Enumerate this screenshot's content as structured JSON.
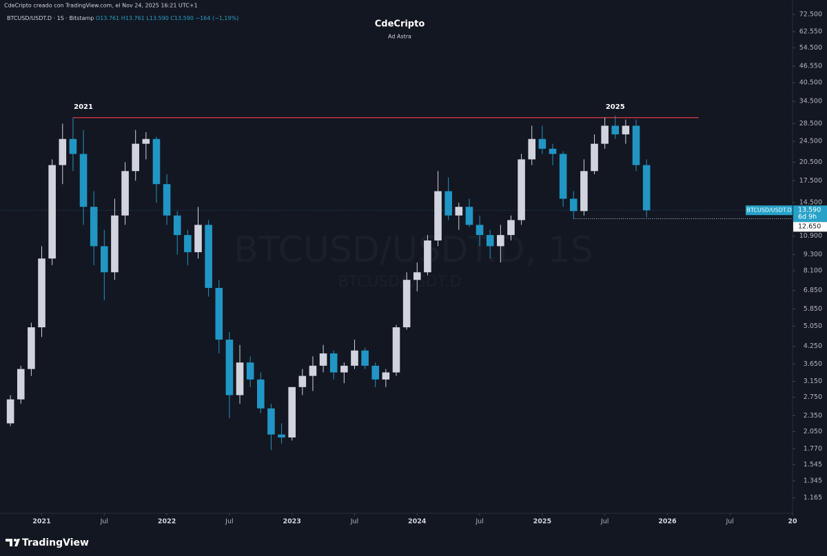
{
  "chart_data": {
    "type": "candlestick",
    "header": "CdeCripto creado con TradingView.com, el Nov 24, 2025 16:21 UTC+1",
    "legend": {
      "symbol": "BTCUSD/USDT.D · 1S · Bitstamp",
      "open": "O13.761",
      "high": "H13.761",
      "low": "L13.590",
      "close": "C13.590",
      "change": "−164 (−1,19%)"
    },
    "title": "CdeCripto",
    "subtitle": "Ad Astra",
    "watermark": "BTCUSD/USDT.D, 1S",
    "watermark_sub": "BTCUSD/USDT.D",
    "footer": "TradingView",
    "log_scale": true,
    "grid": false,
    "up_color": "#d1d4dc",
    "down_color": "#2196c4",
    "xlim": [
      "2020-09",
      "2027-01"
    ],
    "ylim": [
      1.02,
      82
    ],
    "xticks": [
      {
        "value": "2021-01",
        "label": "2021"
      },
      {
        "value": "2021-07",
        "label": "Jul"
      },
      {
        "value": "2022-01",
        "label": "2022"
      },
      {
        "value": "2022-07",
        "label": "Jul"
      },
      {
        "value": "2023-01",
        "label": "2023"
      },
      {
        "value": "2023-07",
        "label": "Jul"
      },
      {
        "value": "2024-01",
        "label": "2024"
      },
      {
        "value": "2024-07",
        "label": "Jul"
      },
      {
        "value": "2025-01",
        "label": "2025"
      },
      {
        "value": "2025-07",
        "label": "Jul"
      },
      {
        "value": "2026-01",
        "label": "2026"
      },
      {
        "value": "2026-07",
        "label": "Jul"
      },
      {
        "value": "2027-01",
        "label": "20"
      }
    ],
    "yticks": [
      {
        "value": 72.5,
        "label": "72.500"
      },
      {
        "value": 62.55,
        "label": "62.550"
      },
      {
        "value": 54.5,
        "label": "54.500"
      },
      {
        "value": 46.55,
        "label": "46.550"
      },
      {
        "value": 40.5,
        "label": "40.500"
      },
      {
        "value": 34.5,
        "label": "34.500"
      },
      {
        "value": 28.5,
        "label": "28.500"
      },
      {
        "value": 24.5,
        "label": "24.500"
      },
      {
        "value": 20.5,
        "label": "20.500"
      },
      {
        "value": 17.5,
        "label": "17.500"
      },
      {
        "value": 14.5,
        "label": "14.500"
      },
      {
        "value": 10.9,
        "label": "10.900"
      },
      {
        "value": 9.3,
        "label": "9.300"
      },
      {
        "value": 8.1,
        "label": "8.100"
      },
      {
        "value": 6.85,
        "label": "6.850"
      },
      {
        "value": 5.85,
        "label": "5.850"
      },
      {
        "value": 5.05,
        "label": "5.050"
      },
      {
        "value": 4.25,
        "label": "4.250"
      },
      {
        "value": 3.65,
        "label": "3.650"
      },
      {
        "value": 3.15,
        "label": "3.150"
      },
      {
        "value": 2.75,
        "label": "2.750"
      },
      {
        "value": 2.35,
        "label": "2.350"
      },
      {
        "value": 2.05,
        "label": "2.050"
      },
      {
        "value": 1.77,
        "label": "1.770"
      },
      {
        "value": 1.545,
        "label": "1.545"
      },
      {
        "value": 1.345,
        "label": "1.345"
      },
      {
        "value": 1.165,
        "label": "1.165"
      }
    ],
    "resistance": {
      "value": 30,
      "from": "2021-04",
      "to": "2026-04",
      "color": "#e53946"
    },
    "low_line": {
      "value": 12.65,
      "label": "12.650",
      "from": "2025-04"
    },
    "price_line": {
      "value": 13.59,
      "label": "13.590",
      "countdown": "6d 9h",
      "symbol": "BTCUSD/USDT.D",
      "color": "#26a2c9"
    },
    "annotations": [
      {
        "text": "2021",
        "x": "2021-05"
      },
      {
        "text": "2025",
        "x": "2025-08"
      }
    ],
    "candles": [
      {
        "x": "2020-10",
        "o": 2.2,
        "h": 2.8,
        "l": 2.15,
        "c": 2.7
      },
      {
        "x": "2020-11",
        "o": 2.7,
        "h": 3.6,
        "l": 2.6,
        "c": 3.5
      },
      {
        "x": "2020-12",
        "o": 3.5,
        "h": 5.2,
        "l": 3.3,
        "c": 5.0
      },
      {
        "x": "2021-01",
        "o": 5.0,
        "h": 10.0,
        "l": 4.6,
        "c": 9.0
      },
      {
        "x": "2021-02",
        "o": 9.0,
        "h": 21.0,
        "l": 8.5,
        "c": 20.0
      },
      {
        "x": "2021-03",
        "o": 20.0,
        "h": 28.5,
        "l": 17.0,
        "c": 25.0
      },
      {
        "x": "2021-04",
        "o": 25.0,
        "h": 30.0,
        "l": 19.0,
        "c": 22.0
      },
      {
        "x": "2021-05",
        "o": 22.0,
        "h": 27.0,
        "l": 12.0,
        "c": 14.0
      },
      {
        "x": "2021-06",
        "o": 14.0,
        "h": 16.0,
        "l": 8.5,
        "c": 10.0
      },
      {
        "x": "2021-07",
        "o": 10.0,
        "h": 11.5,
        "l": 6.3,
        "c": 8.0
      },
      {
        "x": "2021-08",
        "o": 8.0,
        "h": 15.0,
        "l": 7.5,
        "c": 13.0
      },
      {
        "x": "2021-09",
        "o": 13.0,
        "h": 20.5,
        "l": 12.0,
        "c": 19.0
      },
      {
        "x": "2021-10",
        "o": 19.0,
        "h": 27.0,
        "l": 17.5,
        "c": 24.0
      },
      {
        "x": "2021-11",
        "o": 24.0,
        "h": 26.5,
        "l": 21.0,
        "c": 25.0
      },
      {
        "x": "2021-12",
        "o": 25.0,
        "h": 25.5,
        "l": 14.5,
        "c": 17.0
      },
      {
        "x": "2022-01",
        "o": 17.0,
        "h": 18.5,
        "l": 12.0,
        "c": 13.0
      },
      {
        "x": "2022-02",
        "o": 13.0,
        "h": 13.5,
        "l": 9.3,
        "c": 11.0
      },
      {
        "x": "2022-03",
        "o": 11.0,
        "h": 11.5,
        "l": 8.5,
        "c": 9.5
      },
      {
        "x": "2022-04",
        "o": 9.5,
        "h": 14.0,
        "l": 9.0,
        "c": 12.0
      },
      {
        "x": "2022-05",
        "o": 12.0,
        "h": 12.5,
        "l": 6.5,
        "c": 7.0
      },
      {
        "x": "2022-06",
        "o": 7.0,
        "h": 7.5,
        "l": 4.0,
        "c": 4.5
      },
      {
        "x": "2022-07",
        "o": 4.5,
        "h": 4.8,
        "l": 2.3,
        "c": 2.8
      },
      {
        "x": "2022-08",
        "o": 2.8,
        "h": 4.3,
        "l": 2.6,
        "c": 3.7
      },
      {
        "x": "2022-09",
        "o": 3.7,
        "h": 3.9,
        "l": 3.0,
        "c": 3.2
      },
      {
        "x": "2022-10",
        "o": 3.2,
        "h": 3.4,
        "l": 2.4,
        "c": 2.5
      },
      {
        "x": "2022-11",
        "o": 2.5,
        "h": 2.6,
        "l": 1.75,
        "c": 2.0
      },
      {
        "x": "2022-12",
        "o": 2.0,
        "h": 2.2,
        "l": 1.85,
        "c": 1.95
      },
      {
        "x": "2023-01",
        "o": 1.95,
        "h": 3.0,
        "l": 1.9,
        "c": 3.0
      },
      {
        "x": "2023-02",
        "o": 3.0,
        "h": 3.5,
        "l": 2.8,
        "c": 3.3
      },
      {
        "x": "2023-03",
        "o": 3.3,
        "h": 3.9,
        "l": 2.9,
        "c": 3.6
      },
      {
        "x": "2023-04",
        "o": 3.6,
        "h": 4.3,
        "l": 3.4,
        "c": 4.0
      },
      {
        "x": "2023-05",
        "o": 4.0,
        "h": 4.1,
        "l": 3.2,
        "c": 3.4
      },
      {
        "x": "2023-06",
        "o": 3.4,
        "h": 3.7,
        "l": 3.1,
        "c": 3.6
      },
      {
        "x": "2023-07",
        "o": 3.6,
        "h": 4.5,
        "l": 3.5,
        "c": 4.1
      },
      {
        "x": "2023-08",
        "o": 4.1,
        "h": 4.2,
        "l": 3.5,
        "c": 3.6
      },
      {
        "x": "2023-09",
        "o": 3.6,
        "h": 3.7,
        "l": 3.0,
        "c": 3.2
      },
      {
        "x": "2023-10",
        "o": 3.2,
        "h": 3.5,
        "l": 3.0,
        "c": 3.4
      },
      {
        "x": "2023-11",
        "o": 3.4,
        "h": 5.1,
        "l": 3.3,
        "c": 5.0
      },
      {
        "x": "2023-12",
        "o": 5.0,
        "h": 8.0,
        "l": 4.9,
        "c": 7.5
      },
      {
        "x": "2024-01",
        "o": 7.5,
        "h": 8.7,
        "l": 6.8,
        "c": 8.0
      },
      {
        "x": "2024-02",
        "o": 8.0,
        "h": 11.0,
        "l": 7.8,
        "c": 10.5
      },
      {
        "x": "2024-03",
        "o": 10.5,
        "h": 19.0,
        "l": 10.0,
        "c": 16.0
      },
      {
        "x": "2024-04",
        "o": 16.0,
        "h": 18.0,
        "l": 12.5,
        "c": 13.0
      },
      {
        "x": "2024-05",
        "o": 13.0,
        "h": 14.5,
        "l": 11.5,
        "c": 14.0
      },
      {
        "x": "2024-06",
        "o": 14.0,
        "h": 15.0,
        "l": 11.8,
        "c": 12.0
      },
      {
        "x": "2024-07",
        "o": 12.0,
        "h": 13.0,
        "l": 10.0,
        "c": 11.0
      },
      {
        "x": "2024-08",
        "o": 11.0,
        "h": 11.5,
        "l": 9.0,
        "c": 10.0
      },
      {
        "x": "2024-09",
        "o": 10.0,
        "h": 12.0,
        "l": 8.7,
        "c": 11.0
      },
      {
        "x": "2024-10",
        "o": 11.0,
        "h": 13.0,
        "l": 10.5,
        "c": 12.5
      },
      {
        "x": "2024-11",
        "o": 12.5,
        "h": 22.0,
        "l": 12.0,
        "c": 21.0
      },
      {
        "x": "2024-12",
        "o": 21.0,
        "h": 28.0,
        "l": 20.0,
        "c": 25.0
      },
      {
        "x": "2025-01",
        "o": 25.0,
        "h": 28.0,
        "l": 22.0,
        "c": 23.0
      },
      {
        "x": "2025-02",
        "o": 23.0,
        "h": 24.0,
        "l": 20.0,
        "c": 22.0
      },
      {
        "x": "2025-03",
        "o": 22.0,
        "h": 22.5,
        "l": 14.0,
        "c": 15.0
      },
      {
        "x": "2025-04",
        "o": 15.0,
        "h": 16.0,
        "l": 12.65,
        "c": 13.5
      },
      {
        "x": "2025-05",
        "o": 13.5,
        "h": 21.0,
        "l": 13.0,
        "c": 19.0
      },
      {
        "x": "2025-06",
        "o": 19.0,
        "h": 26.0,
        "l": 18.5,
        "c": 24.0
      },
      {
        "x": "2025-07",
        "o": 24.0,
        "h": 30.0,
        "l": 23.0,
        "c": 28.0
      },
      {
        "x": "2025-08",
        "o": 28.0,
        "h": 30.5,
        "l": 25.0,
        "c": 26.0
      },
      {
        "x": "2025-09",
        "o": 26.0,
        "h": 29.5,
        "l": 24.0,
        "c": 28.0
      },
      {
        "x": "2025-10",
        "o": 28.0,
        "h": 29.5,
        "l": 19.0,
        "c": 20.0
      },
      {
        "x": "2025-11",
        "o": 20.0,
        "h": 21.0,
        "l": 12.8,
        "c": 13.59
      }
    ]
  }
}
